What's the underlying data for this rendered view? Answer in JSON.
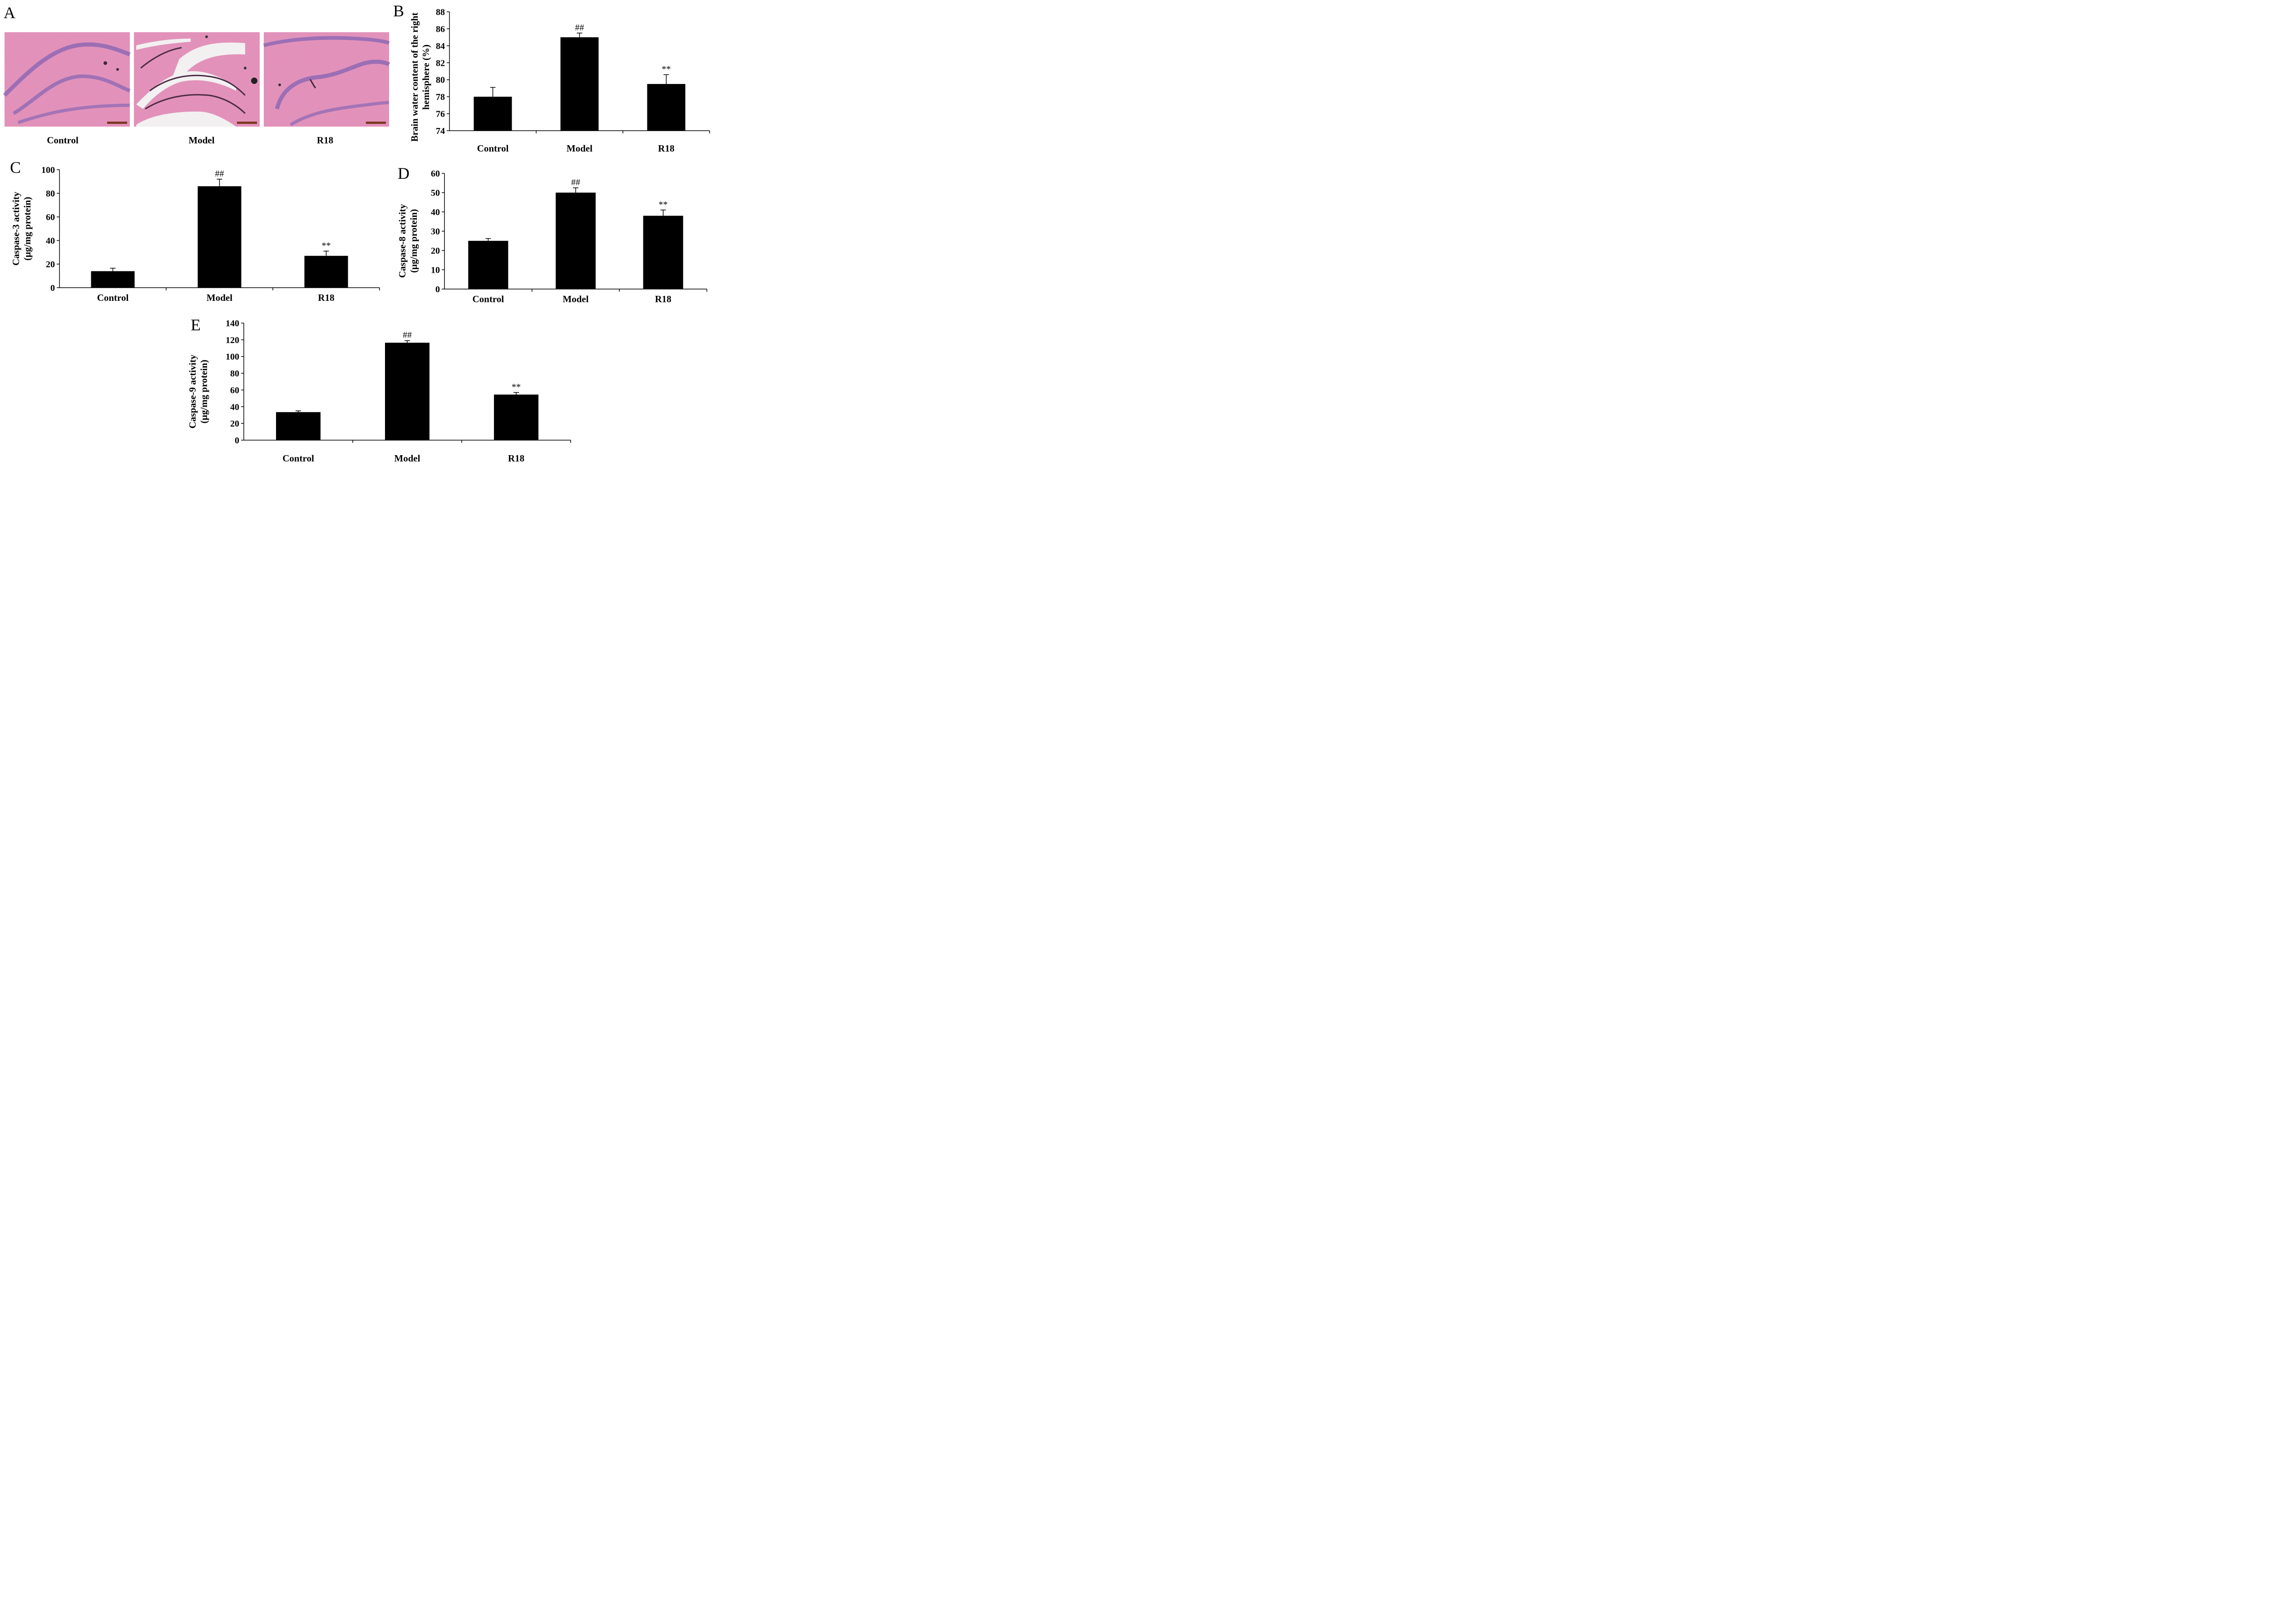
{
  "panel_a": {
    "letter": "A",
    "images": [
      {
        "label": "Control",
        "tissue": "normal"
      },
      {
        "label": "Model",
        "tissue": "edema"
      },
      {
        "label": "R18",
        "tissue": "normal"
      }
    ],
    "colors": {
      "tissue": "#e58fb7",
      "cells": "#8f69b4",
      "edema_space": "#f2f0f1",
      "scale_bar": "#7a3a22"
    }
  },
  "chart_data": [
    {
      "panel": "B",
      "type": "bar",
      "categories": [
        "Control",
        "Model",
        "R18"
      ],
      "values": [
        78.0,
        85.0,
        79.5
      ],
      "errors": [
        1.1,
        0.5,
        1.1
      ],
      "annotations": [
        "",
        "##",
        "**"
      ],
      "ylabel_lines": [
        "Brain water content of the right",
        "hemisphere (%)"
      ],
      "ylim": [
        74,
        88
      ],
      "yticks": [
        "74",
        "76",
        "78",
        "80",
        "82",
        "84",
        "86",
        "88"
      ],
      "bar_color": "#000000"
    },
    {
      "panel": "C",
      "type": "bar",
      "categories": [
        "Control",
        "Model",
        "R18"
      ],
      "values": [
        14,
        86,
        27
      ],
      "errors": [
        2.5,
        6,
        4
      ],
      "annotations": [
        "",
        "##",
        "**"
      ],
      "ylabel_lines": [
        "Caspase-3 activity",
        "(μg/mg protein)"
      ],
      "ylim": [
        0,
        100
      ],
      "yticks": [
        "0",
        "20",
        "40",
        "60",
        "80",
        "100"
      ],
      "bar_color": "#000000"
    },
    {
      "panel": "D",
      "type": "bar",
      "categories": [
        "Control",
        "Model",
        "R18"
      ],
      "values": [
        25,
        50,
        38
      ],
      "errors": [
        1.2,
        2.5,
        3
      ],
      "annotations": [
        "",
        "##",
        "**"
      ],
      "ylabel_lines": [
        "Caspase-8 activity",
        "(μg/mg protein)"
      ],
      "ylim": [
        0,
        60
      ],
      "yticks": [
        "0",
        "10",
        "20",
        "30",
        "40",
        "50",
        "60"
      ],
      "bar_color": "#000000"
    },
    {
      "panel": "E",
      "type": "bar",
      "categories": [
        "Control",
        "Model",
        "R18"
      ],
      "values": [
        33.5,
        116.5,
        54.5
      ],
      "errors": [
        1.5,
        2.5,
        2.5
      ],
      "annotations": [
        "",
        "##",
        "**"
      ],
      "ylabel_lines": [
        "Caspase-9 activity",
        "(μg/mg protein)"
      ],
      "ylim": [
        0,
        140
      ],
      "yticks": [
        "0",
        "20",
        "40",
        "60",
        "80",
        "100",
        "120",
        "140"
      ],
      "bar_color": "#000000"
    }
  ]
}
